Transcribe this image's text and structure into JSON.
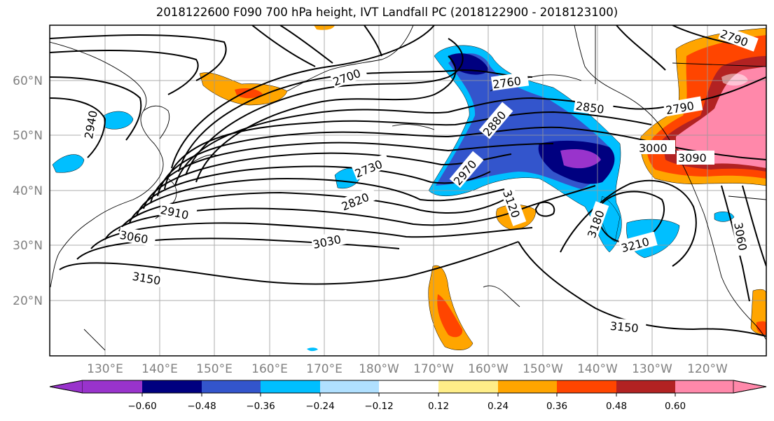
{
  "title": "2018122600 F090 700 hPa height, IVT Landfall PC (2018122900 - 2018123100)",
  "lon_labels": [
    "130°E",
    "140°E",
    "150°E",
    "160°E",
    "170°E",
    "180°W",
    "170°W",
    "160°W",
    "150°W",
    "140°W",
    "130°W",
    "120°W"
  ],
  "lat_labels": [
    "60°N",
    "50°N",
    "40°N",
    "30°N",
    "20°N"
  ],
  "colorbar": {
    "ticks": [
      "−0.60",
      "−0.48",
      "−0.36",
      "−0.24",
      "−0.12",
      "0.12",
      "0.24",
      "0.36",
      "0.48",
      "0.60"
    ],
    "colors": [
      "#9933cc",
      "#000080",
      "#3355cc",
      "#00bfff",
      "#b0e0ff",
      "#ffffff",
      "#ffee88",
      "#ffa500",
      "#ff4500",
      "#b22222",
      "#ff88aa"
    ]
  },
  "contour_labels": [
    "2700",
    "2760",
    "2850",
    "2790",
    "2940",
    "2880",
    "2730",
    "2790",
    "3000",
    "3090",
    "2970",
    "3120",
    "2820",
    "2910",
    "3180",
    "3060",
    "3030",
    "3210",
    "3060",
    "3150",
    "3150"
  ]
}
